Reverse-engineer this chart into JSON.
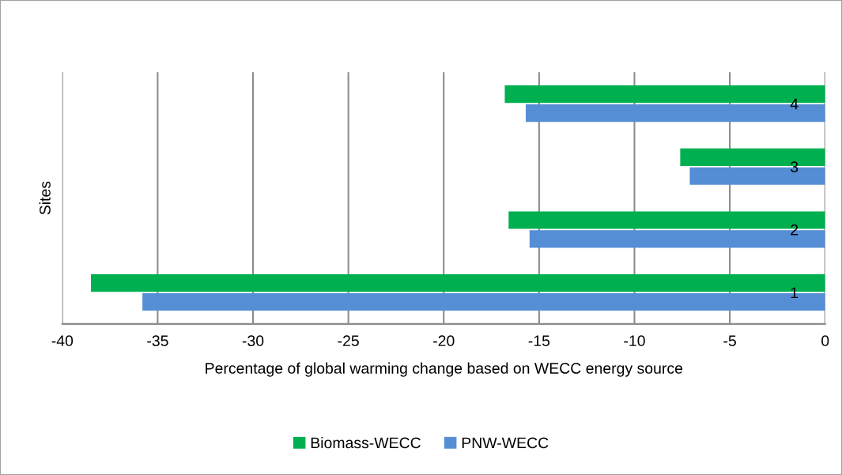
{
  "chart_data": {
    "type": "bar",
    "orientation": "horizontal",
    "categories": [
      "4",
      "3",
      "2",
      "1"
    ],
    "xlabel": "Percentage of global warming change based on WECC energy source",
    "ylabel": "Sites",
    "series": [
      {
        "name": "Biomass-WECC",
        "color": "#00b050",
        "values": [
          -16.8,
          -7.6,
          -16.6,
          -38.5
        ]
      },
      {
        "name": "PNW-WECC",
        "color": "#558ed5",
        "values": [
          -15.7,
          -7.1,
          -15.5,
          -35.8
        ]
      }
    ],
    "xlim": [
      -40,
      0
    ],
    "xticks": [
      -40,
      -35,
      -30,
      -25,
      -20,
      -15,
      -10,
      -5,
      0
    ],
    "grid": "x",
    "legend": "bottom"
  }
}
